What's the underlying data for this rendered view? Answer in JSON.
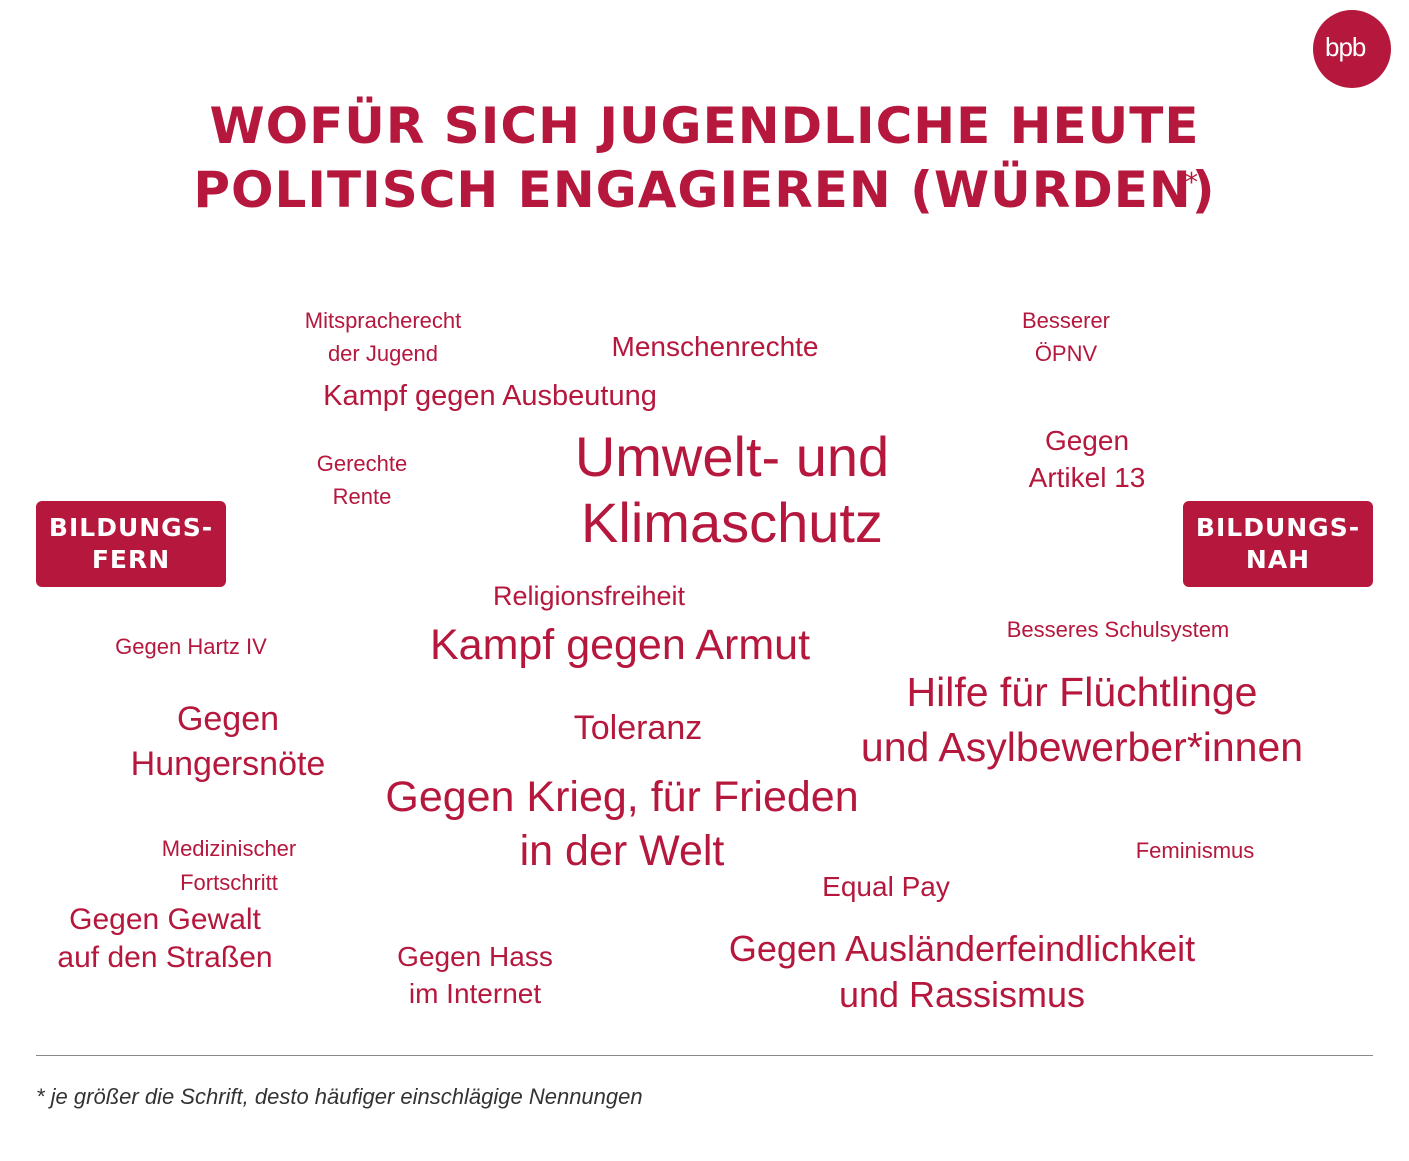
{
  "logo": {
    "text": "bpb",
    "colon": ":"
  },
  "title": {
    "line1": "WOFÜR SICH JUGENDLICHE HEUTE",
    "line2": "POLITISCH ENGAGIEREN (WÜRDEN)",
    "asterisk": "*"
  },
  "badges": {
    "left": {
      "line1": "BILDUNGS-",
      "line2": "FERN"
    },
    "right": {
      "line1": "BILDUNGS-",
      "line2": "NAH"
    }
  },
  "words": [
    {
      "id": "mitsprache",
      "lines": [
        "Mitspracherecht",
        "der Jugend"
      ]
    },
    {
      "id": "menschenrechte",
      "lines": [
        "Menschenrechte"
      ]
    },
    {
      "id": "oepnv",
      "lines": [
        "Besserer",
        "ÖPNV"
      ]
    },
    {
      "id": "ausbeutung",
      "lines": [
        "Kampf gegen Ausbeutung"
      ]
    },
    {
      "id": "rente",
      "lines": [
        "Gerechte",
        "Rente"
      ]
    },
    {
      "id": "klima",
      "lines": [
        "Umwelt- und",
        "Klimaschutz"
      ]
    },
    {
      "id": "artikel13",
      "lines": [
        "Gegen",
        "Artikel 13"
      ]
    },
    {
      "id": "religion",
      "lines": [
        "Religionsfreiheit"
      ]
    },
    {
      "id": "armut",
      "lines": [
        "Kampf gegen Armut"
      ]
    },
    {
      "id": "schulsystem",
      "lines": [
        "Besseres Schulsystem"
      ]
    },
    {
      "id": "hartz",
      "lines": [
        "Gegen Hartz IV"
      ]
    },
    {
      "id": "fluechtlinge",
      "lines": [
        "Hilfe für Flüchtlinge",
        "und Asylbewerber*innen"
      ]
    },
    {
      "id": "hunger",
      "lines": [
        "Gegen",
        "Hungersnöte"
      ]
    },
    {
      "id": "toleranz",
      "lines": [
        "Toleranz"
      ]
    },
    {
      "id": "frieden",
      "lines": [
        "Gegen Krieg, für Frieden",
        "in der Welt"
      ]
    },
    {
      "id": "medizin",
      "lines": [
        "Medizinischer",
        "Fortschritt"
      ]
    },
    {
      "id": "feminismus",
      "lines": [
        "Feminismus"
      ]
    },
    {
      "id": "equalpay",
      "lines": [
        "Equal Pay"
      ]
    },
    {
      "id": "gewalt",
      "lines": [
        "Gegen Gewalt",
        "auf den Straßen"
      ]
    },
    {
      "id": "hass",
      "lines": [
        "Gegen Hass",
        "im Internet"
      ]
    },
    {
      "id": "rassismus",
      "lines": [
        "Gegen Ausländerfeindlichkeit",
        "und Rassismus"
      ]
    }
  ],
  "footnote": "* je größer die Schrift, desto häufiger einschlägige Nennungen",
  "colors": {
    "accent": "#b5173d",
    "footnote": "#333333",
    "rule": "#8a8a8a"
  }
}
